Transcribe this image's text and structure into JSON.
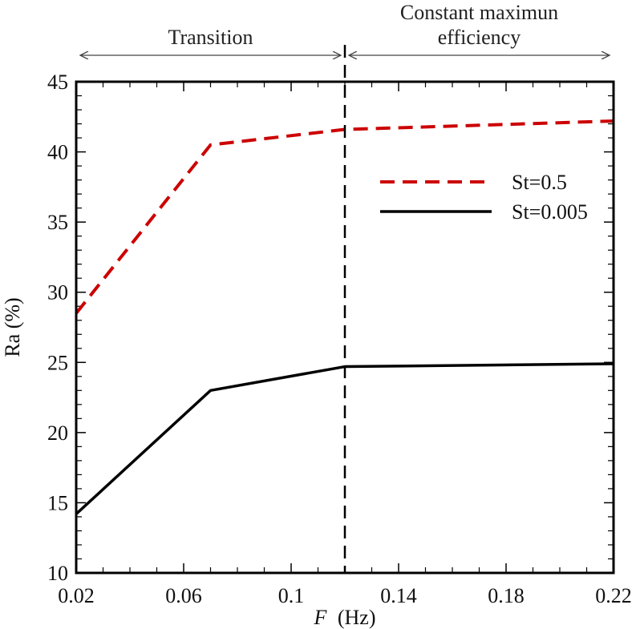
{
  "chart_data": {
    "type": "line",
    "title": "",
    "xlabel_italic": "F",
    "xlabel_rest": "(Hz)",
    "ylabel": "Ra (%)",
    "xlim": [
      0.02,
      0.22
    ],
    "ylim": [
      10,
      45
    ],
    "x_ticks": [
      0.02,
      0.06,
      0.1,
      0.14,
      0.18,
      0.22
    ],
    "x_tick_labels": [
      "0.02",
      "0.06",
      "0.1",
      "0.14",
      "0.18",
      "0.22"
    ],
    "y_ticks": [
      10,
      15,
      20,
      25,
      30,
      35,
      40,
      45
    ],
    "y_tick_labels": [
      "10",
      "15",
      "20",
      "25",
      "30",
      "35",
      "40",
      "45"
    ],
    "grid": false,
    "legend_position": "upper-right",
    "series": [
      {
        "name": "St=0.5",
        "color": "#cc0000",
        "style": "dashed",
        "x": [
          0.02,
          0.07,
          0.12,
          0.22
        ],
        "y": [
          28.5,
          40.5,
          41.6,
          42.2
        ]
      },
      {
        "name": "St=0.005",
        "color": "#000000",
        "style": "solid",
        "x": [
          0.02,
          0.07,
          0.12,
          0.22
        ],
        "y": [
          14.2,
          23.0,
          24.7,
          24.9
        ]
      }
    ],
    "vertical_marker_x": 0.12,
    "regions": [
      {
        "label_lines": [
          "Transition"
        ],
        "x_range": [
          0.02,
          0.12
        ]
      },
      {
        "label_lines": [
          "Constant maximun",
          "efficiency"
        ],
        "x_range": [
          0.12,
          0.22
        ]
      }
    ]
  }
}
